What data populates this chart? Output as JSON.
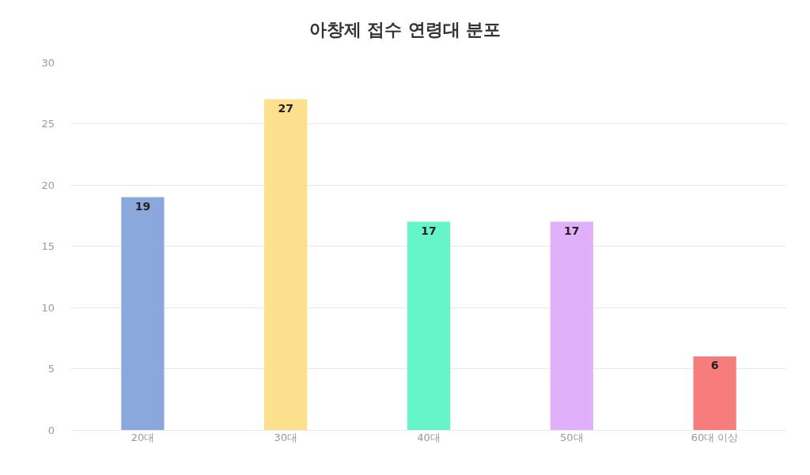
{
  "chart_data": {
    "type": "bar",
    "title": "아창제 접수 연령대 분포",
    "categories": [
      "20대",
      "30대",
      "40대",
      "50대",
      "60대 이상"
    ],
    "values": [
      19,
      27,
      17,
      17,
      6
    ],
    "colors": [
      "#8aa8dc",
      "#fce08e",
      "#66f5c8",
      "#e0b0fa",
      "#f77c7c"
    ],
    "ylim": [
      0,
      30
    ],
    "yticks": [
      0,
      5,
      10,
      15,
      20,
      25,
      30
    ],
    "grid": "y",
    "data_labels": true
  }
}
